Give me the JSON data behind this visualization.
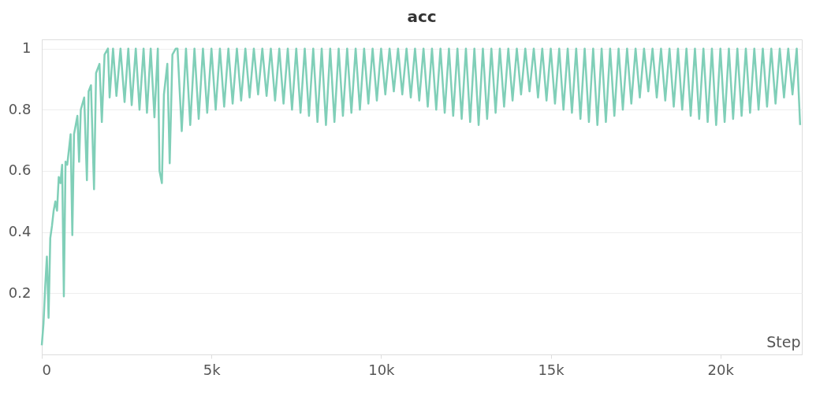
{
  "chart_data": {
    "type": "line",
    "title": "acc",
    "xlabel": "Step",
    "x": [
      0,
      50,
      100,
      150,
      200,
      250,
      300,
      350,
      400,
      450,
      500,
      550,
      600,
      650,
      700,
      750,
      800,
      850,
      900,
      950,
      1000,
      1050,
      1100,
      1150,
      1250,
      1330,
      1380,
      1450,
      1540,
      1600,
      1700,
      1770,
      1850,
      1950,
      2000,
      2100,
      2200,
      2320,
      2440,
      2550,
      2650,
      2770,
      2880,
      3000,
      3100,
      3210,
      3320,
      3420,
      3470,
      3540,
      3600,
      3650,
      3700,
      3770,
      3850,
      3950,
      4000,
      4125,
      4250,
      4375,
      4500,
      4625,
      4750,
      4875,
      5000,
      5125,
      5250,
      5375,
      5500,
      5625,
      5750,
      5875,
      6000,
      6125,
      6250,
      6375,
      6500,
      6625,
      6750,
      6875,
      7000,
      7125,
      7250,
      7375,
      7500,
      7625,
      7750,
      7875,
      8000,
      8125,
      8250,
      8375,
      8500,
      8625,
      8750,
      8875,
      9000,
      9125,
      9250,
      9375,
      9500,
      9625,
      9750,
      9875,
      10000,
      10125,
      10250,
      10375,
      10500,
      10625,
      10750,
      10875,
      11000,
      11125,
      11250,
      11375,
      11500,
      11625,
      11750,
      11875,
      12000,
      12125,
      12250,
      12375,
      12500,
      12625,
      12750,
      12875,
      13000,
      13125,
      13250,
      13375,
      13500,
      13625,
      13750,
      13875,
      14000,
      14125,
      14250,
      14375,
      14500,
      14625,
      14750,
      14875,
      15000,
      15125,
      15250,
      15375,
      15500,
      15625,
      15750,
      15875,
      16000,
      16125,
      16250,
      16375,
      16500,
      16625,
      16750,
      16875,
      17000,
      17125,
      17250,
      17375,
      17500,
      17625,
      17750,
      17875,
      18000,
      18125,
      18250,
      18375,
      18500,
      18625,
      18750,
      18875,
      19000,
      19125,
      19250,
      19375,
      19500,
      19625,
      19750,
      19875,
      20000,
      20125,
      20250,
      20375,
      20500,
      20625,
      20750,
      20875,
      21000,
      21125,
      21250,
      21375,
      21500,
      21625,
      21750,
      21875,
      22000,
      22125,
      22250,
      22350
    ],
    "series": [
      {
        "color": "#80cfb8",
        "values": [
          0.03,
          0.1,
          0.22,
          0.32,
          0.12,
          0.38,
          0.42,
          0.47,
          0.5,
          0.47,
          0.58,
          0.56,
          0.62,
          0.19,
          0.63,
          0.62,
          0.67,
          0.72,
          0.39,
          0.72,
          0.75,
          0.78,
          0.63,
          0.8,
          0.84,
          0.57,
          0.86,
          0.88,
          0.54,
          0.92,
          0.95,
          0.76,
          0.98,
          1,
          0.84,
          1,
          0.845,
          1,
          0.825,
          1,
          0.815,
          1,
          0.8,
          1,
          0.79,
          1,
          0.775,
          1,
          0.6,
          0.56,
          0.85,
          0.9,
          0.95,
          0.625,
          0.98,
          1,
          1,
          0.73,
          1,
          0.75,
          1,
          0.77,
          1,
          0.79,
          1,
          0.8,
          1,
          0.81,
          1,
          0.82,
          1,
          0.83,
          1,
          0.84,
          1,
          0.85,
          1,
          0.845,
          1,
          0.83,
          1,
          0.82,
          1,
          0.8,
          1,
          0.79,
          1,
          0.78,
          1,
          0.76,
          1,
          0.75,
          1,
          0.76,
          1,
          0.78,
          1,
          0.79,
          1,
          0.8,
          1,
          0.82,
          1,
          0.83,
          1,
          0.85,
          1,
          0.86,
          1,
          0.85,
          1,
          0.84,
          1,
          0.83,
          1,
          0.81,
          1,
          0.8,
          1,
          0.79,
          1,
          0.78,
          1,
          0.77,
          1,
          0.76,
          1,
          0.75,
          1,
          0.77,
          1,
          0.79,
          1,
          0.81,
          1,
          0.83,
          1,
          0.85,
          1,
          0.86,
          1,
          0.84,
          1,
          0.83,
          1,
          0.82,
          1,
          0.8,
          1,
          0.79,
          1,
          0.77,
          1,
          0.76,
          1,
          0.75,
          1,
          0.76,
          1,
          0.78,
          1,
          0.8,
          1,
          0.82,
          1,
          0.84,
          1,
          0.86,
          1,
          0.84,
          1,
          0.83,
          1,
          0.81,
          1,
          0.8,
          1,
          0.78,
          1,
          0.77,
          1,
          0.76,
          1,
          0.75,
          1,
          0.76,
          1,
          0.77,
          1,
          0.78,
          1,
          0.79,
          1,
          0.8,
          1,
          0.81,
          1,
          0.82,
          1,
          0.84,
          1,
          0.85,
          1,
          0.75
        ]
      }
    ],
    "xlim": [
      0,
      22400
    ],
    "ylim": [
      0,
      1.03
    ],
    "xticks": [
      0,
      {
        "value": 5000,
        "label": "5k"
      },
      {
        "value": 10000,
        "label": "10k"
      },
      {
        "value": 15000,
        "label": "15k"
      },
      {
        "value": 20000,
        "label": "20k"
      }
    ],
    "yticks": [
      0.2,
      0.4,
      0.6,
      0.8,
      1
    ],
    "grid": "y"
  }
}
